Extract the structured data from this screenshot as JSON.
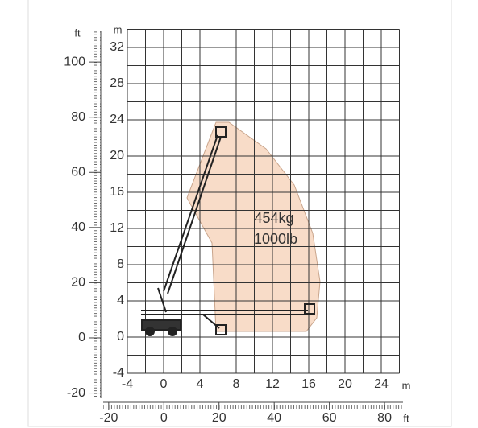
{
  "chart_data": {
    "type": "working-range",
    "load_labels": [
      "454kg",
      "1000lb"
    ],
    "left_units": [
      "ft",
      "m"
    ],
    "bottom_units": [
      "m",
      "ft"
    ],
    "xlim": [
      -4,
      26
    ],
    "ylim": [
      -4,
      34
    ],
    "xticks": [
      -4,
      0,
      4,
      8,
      12,
      16,
      20,
      24
    ],
    "yticks": [
      -4,
      0,
      4,
      8,
      12,
      16,
      20,
      24,
      28,
      32
    ],
    "xgrid": [
      -4,
      -2,
      0,
      2,
      4,
      6,
      8,
      10,
      12,
      14,
      16,
      18,
      20,
      22,
      24,
      26
    ],
    "ygrid": [
      -4,
      -2,
      0,
      2,
      4,
      6,
      8,
      10,
      12,
      14,
      16,
      18,
      20,
      22,
      24,
      26,
      28,
      30,
      32,
      34
    ],
    "ft_ylim": [
      -22,
      111.5
    ],
    "ft_yticks": [
      -20,
      0,
      20,
      40,
      60,
      80,
      100
    ],
    "ft_xlim": [
      -22,
      86.7
    ],
    "ft_xticks": [
      -20,
      0,
      20,
      40,
      60,
      80
    ]
  }
}
